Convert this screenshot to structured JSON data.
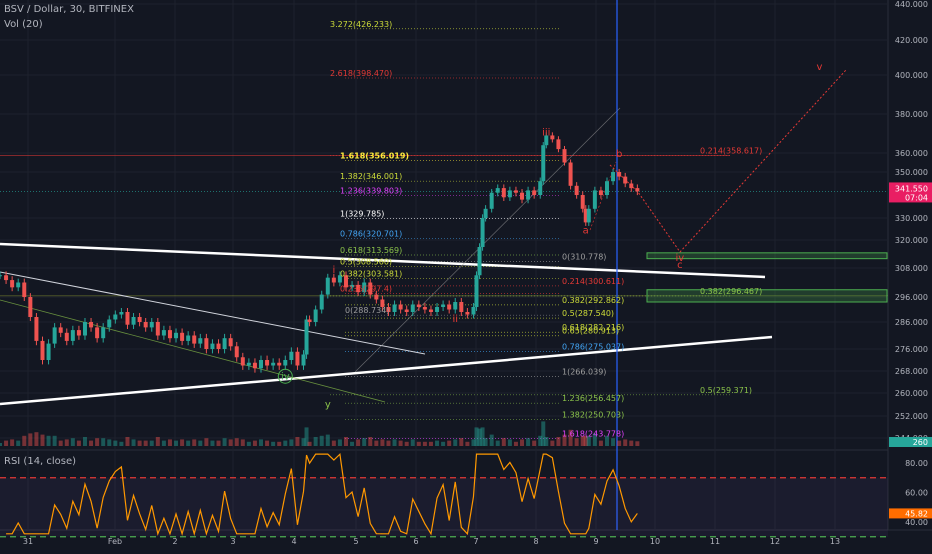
{
  "header": {
    "symbol": "BSV / Dollar, 30, BITFINEX",
    "volume": "Vol (20)",
    "rsi": "RSI (14, close)"
  },
  "price_badge": {
    "price": "341.550",
    "countdown": "07:04",
    "color": "#e91e63"
  },
  "rsi_badge": {
    "value": "45.82",
    "color": "#ff6d00"
  },
  "vol_badge": {
    "value": "260",
    "color": "#26a69a"
  },
  "chart_data": [
    {
      "type": "candlestick",
      "title": "BSV / Dollar, 30, BITFINEX",
      "y_axis": {
        "ticks": [
          440,
          420,
          400,
          380,
          360,
          350,
          330,
          320,
          308,
          296,
          286,
          276,
          268,
          260,
          252,
          244
        ],
        "tick_labels": [
          "440.000",
          "420.000",
          "400.000",
          "380.000",
          "360.000",
          "350.000",
          "330.000",
          "320.000",
          "308.000",
          "296.000",
          "286.000",
          "276.000",
          "268.000",
          "260.000",
          "252.000",
          "244.000"
        ]
      },
      "x_axis": {
        "tick_labels": [
          "31",
          "Feb",
          "2",
          "3",
          "4",
          "5",
          "6",
          "7",
          "8",
          "9",
          "10",
          "11",
          "12",
          "13"
        ]
      },
      "close_series": [
        [
          0.0,
          305
        ],
        [
          0.1,
          303
        ],
        [
          0.2,
          300
        ],
        [
          0.3,
          302
        ],
        [
          0.4,
          296
        ],
        [
          0.5,
          288
        ],
        [
          0.6,
          279
        ],
        [
          0.7,
          272
        ],
        [
          0.8,
          278
        ],
        [
          0.9,
          284
        ],
        [
          1.0,
          282
        ],
        [
          1.1,
          279
        ],
        [
          1.2,
          283
        ],
        [
          1.3,
          281
        ],
        [
          1.4,
          286
        ],
        [
          1.5,
          284
        ],
        [
          1.6,
          280
        ],
        [
          1.7,
          284
        ],
        [
          1.8,
          287
        ],
        [
          1.9,
          289
        ],
        [
          2.0,
          290
        ],
        [
          2.1,
          285
        ],
        [
          2.2,
          288
        ],
        [
          2.3,
          286
        ],
        [
          2.4,
          284
        ],
        [
          2.5,
          286
        ],
        [
          2.6,
          281
        ],
        [
          2.7,
          283
        ],
        [
          2.8,
          280
        ],
        [
          2.9,
          282
        ],
        [
          3.0,
          279
        ],
        [
          3.1,
          281
        ],
        [
          3.2,
          278
        ],
        [
          3.3,
          280
        ],
        [
          3.4,
          276
        ],
        [
          3.5,
          278
        ],
        [
          3.6,
          276
        ],
        [
          3.7,
          280
        ],
        [
          3.8,
          277
        ],
        [
          3.9,
          273
        ],
        [
          4.0,
          270
        ],
        [
          4.1,
          271
        ],
        [
          4.2,
          269
        ],
        [
          4.3,
          272
        ],
        [
          4.4,
          270
        ],
        [
          4.5,
          271
        ],
        [
          4.6,
          270
        ],
        [
          4.7,
          272
        ],
        [
          4.8,
          275
        ],
        [
          4.9,
          270
        ],
        [
          5.0,
          274
        ],
        [
          5.05,
          287
        ],
        [
          5.1,
          286
        ],
        [
          5.2,
          291
        ],
        [
          5.3,
          297
        ],
        [
          5.4,
          304
        ],
        [
          5.5,
          302
        ],
        [
          5.6,
          305
        ],
        [
          5.7,
          300
        ],
        [
          5.8,
          301
        ],
        [
          5.9,
          298
        ],
        [
          6.0,
          302
        ],
        [
          6.1,
          297
        ],
        [
          6.2,
          295
        ],
        [
          6.3,
          292
        ],
        [
          6.4,
          290
        ],
        [
          6.5,
          293
        ],
        [
          6.6,
          291
        ],
        [
          6.7,
          290
        ],
        [
          6.8,
          293
        ],
        [
          6.9,
          292
        ],
        [
          7.0,
          291
        ],
        [
          7.1,
          290
        ],
        [
          7.2,
          292
        ],
        [
          7.3,
          293
        ],
        [
          7.4,
          291
        ],
        [
          7.5,
          294
        ],
        [
          7.6,
          290
        ],
        [
          7.7,
          289
        ],
        [
          7.8,
          292
        ],
        [
          7.85,
          305
        ],
        [
          7.9,
          317
        ],
        [
          7.95,
          330
        ],
        [
          8.0,
          334
        ],
        [
          8.1,
          341
        ],
        [
          8.2,
          343
        ],
        [
          8.3,
          339
        ],
        [
          8.4,
          342
        ],
        [
          8.5,
          341
        ],
        [
          8.6,
          338
        ],
        [
          8.7,
          342
        ],
        [
          8.8,
          340
        ],
        [
          8.9,
          346
        ],
        [
          8.95,
          364
        ],
        [
          9.0,
          369
        ],
        [
          9.1,
          367
        ],
        [
          9.2,
          362
        ],
        [
          9.3,
          355
        ],
        [
          9.4,
          344
        ],
        [
          9.5,
          340
        ],
        [
          9.6,
          334
        ],
        [
          9.65,
          328
        ],
        [
          9.7,
          334
        ],
        [
          9.8,
          342
        ],
        [
          9.9,
          340
        ],
        [
          10.0,
          346
        ],
        [
          10.1,
          350
        ],
        [
          10.2,
          348
        ],
        [
          10.3,
          345
        ],
        [
          10.4,
          343
        ],
        [
          10.5,
          341.55
        ]
      ],
      "horizontal_levels": [
        {
          "label": "3.272(426.233)",
          "value": 426.233,
          "color": "#cddc39"
        },
        {
          "label": "2.618(398.470)",
          "value": 398.47,
          "color": "#e53935"
        },
        {
          "label": "1.618(356.019)",
          "value": 356.019,
          "color": "#ffeb3b"
        },
        {
          "label": "0.214(358.617)",
          "value": 358.617,
          "color": "#e53935"
        },
        {
          "label": "1.382(346.001)",
          "value": 346.001,
          "color": "#cddc39"
        },
        {
          "label": "1.236(339.803)",
          "value": 339.803,
          "color": "#e040fb"
        },
        {
          "label": "1(329.785)",
          "value": 329.785,
          "color": "#ffffff"
        },
        {
          "label": "0.786(320.701)",
          "value": 320.701,
          "color": "#42a5f5"
        },
        {
          "label": "0.618(313.569)",
          "value": 313.569,
          "color": "#8bc34a"
        },
        {
          "label": "0(310.778)",
          "value": 310.778,
          "color": "#9e9e9e"
        },
        {
          "label": "0.5(308.560)",
          "value": 308.56,
          "color": "#cddc39"
        },
        {
          "label": "0.382(303.581)",
          "value": 303.581,
          "color": "#cddc39"
        },
        {
          "label": "0.214(300.611)",
          "value": 300.611,
          "color": "#e53935"
        },
        {
          "label": "0.236(297.4)",
          "value": 297.4,
          "color": "#e53935"
        },
        {
          "label": "0.382(292.862)",
          "value": 292.862,
          "color": "#cddc39"
        },
        {
          "label": "0.382(296.467)",
          "value": 296.467,
          "color": "#8bc34a"
        },
        {
          "label": "0.5(287.540)",
          "value": 287.54,
          "color": "#cddc39"
        },
        {
          "label": "0(288.734)",
          "value": 288.734,
          "color": "#9e9e9e"
        },
        {
          "label": "0.618(282.216)",
          "value": 282.216,
          "color": "#cddc39"
        },
        {
          "label": "0.65(280.913)",
          "value": 280.913,
          "color": "#cddc39"
        },
        {
          "label": "0.786(275.037)",
          "value": 275.037,
          "color": "#42a5f5"
        },
        {
          "label": "1(266.039)",
          "value": 266.039,
          "color": "#9e9e9e"
        },
        {
          "label": "0.5(259.371)",
          "value": 259.371,
          "color": "#8bc34a"
        },
        {
          "label": "1.236(256.457)",
          "value": 256.457,
          "color": "#8bc34a"
        },
        {
          "label": "1.382(250.703)",
          "value": 250.703,
          "color": "#8bc34a"
        },
        {
          "label": "1.618(243.778)",
          "value": 243.778,
          "color": "#e040fb"
        }
      ],
      "wave_labels": [
        {
          "text": "iii",
          "x": 9.0,
          "y": 369,
          "color": "#e53935"
        },
        {
          "text": "b",
          "x": 10.2,
          "y": 358,
          "color": "#e53935"
        },
        {
          "text": "a",
          "x": 9.65,
          "y": 323,
          "color": "#e53935"
        },
        {
          "text": "iv",
          "x": 11.2,
          "y": 311,
          "color": "#e53935"
        },
        {
          "text": "c",
          "x": 11.2,
          "y": 308,
          "color": "#e53935"
        },
        {
          "text": "v",
          "x": 13.5,
          "y": 403,
          "color": "#e53935"
        },
        {
          "text": "i",
          "x": 5.5,
          "y": 306,
          "color": "#e53935"
        },
        {
          "text": "ii",
          "x": 7.5,
          "y": 286,
          "color": "#e53935"
        },
        {
          "text": "iv",
          "x": 4.7,
          "y": 265,
          "color": "#4caf50"
        },
        {
          "text": "y",
          "x": 5.4,
          "y": 255,
          "color": "#8bc34a"
        }
      ],
      "target_zones": [
        {
          "from": 312,
          "to": 314.5,
          "color": "#4caf50"
        },
        {
          "from": 294,
          "to": 299,
          "color": "#4caf50"
        }
      ]
    },
    {
      "type": "line",
      "title": "RSI (14, close)",
      "y_axis": {
        "ticks": [
          80,
          60,
          40
        ],
        "tick_labels": [
          "80.00",
          "60.00",
          "40.00"
        ],
        "overbought": 70,
        "oversold": 30
      },
      "last_value": 45.82
    }
  ]
}
